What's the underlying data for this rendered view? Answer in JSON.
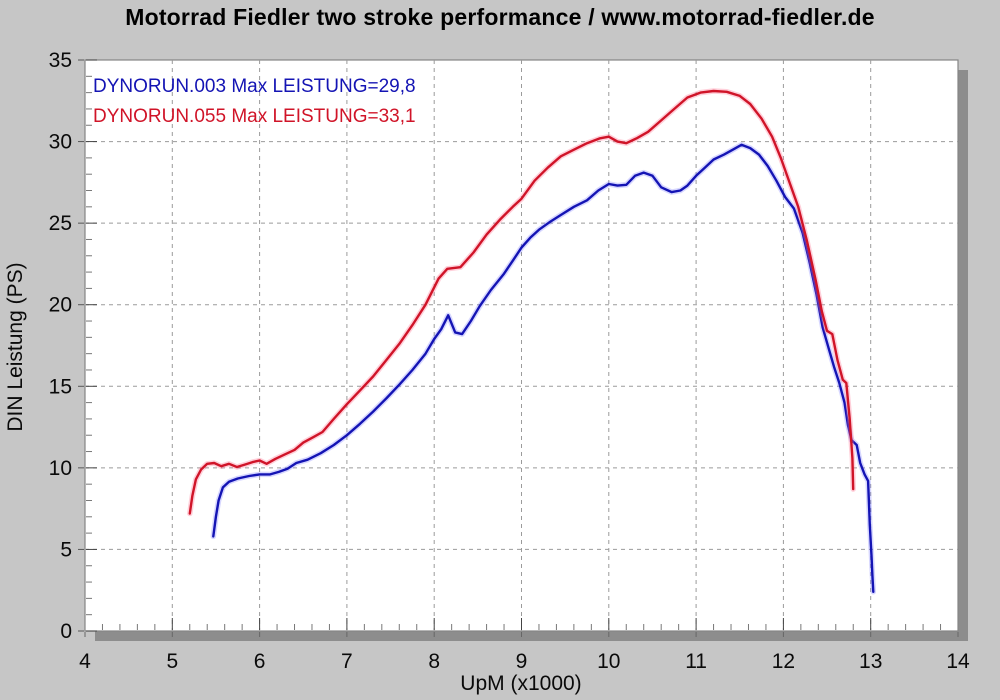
{
  "header": {
    "title": "Motorrad Fiedler two stroke performance / www.motorrad-fiedler.de"
  },
  "chart_data": {
    "type": "line",
    "title": "Motorrad Fiedler two stroke performance / www.motorrad-fiedler.de",
    "xlabel": "UpM (x1000)",
    "ylabel": "DIN Leistung (PS)",
    "xlim": [
      4,
      14
    ],
    "ylim": [
      0,
      35
    ],
    "x_ticks": [
      4,
      5,
      6,
      7,
      8,
      9,
      10,
      11,
      12,
      13,
      14
    ],
    "y_ticks": [
      0,
      5,
      10,
      15,
      20,
      25,
      30,
      35
    ],
    "x_minor_step": 0.2,
    "y_minor_step": 1,
    "grid": "dashed-major",
    "legend_position": "top-left",
    "background": "#c6c6c6",
    "plot_background": "#ffffff",
    "grid_color": "#9b9b9b",
    "shadow_color": "#8d8d8d",
    "series": [
      {
        "name": "DYNORUN.003",
        "legend": "DYNORUN.003  Max LEISTUNG=29,8",
        "max_label": "Max LEISTUNG=29,8",
        "max_value_ps": 29.8,
        "color": "#1414b4",
        "halo": "rgba(110,110,255,0.28)",
        "points": [
          [
            5.47,
            5.8
          ],
          [
            5.5,
            7.0
          ],
          [
            5.53,
            8.0
          ],
          [
            5.58,
            8.8
          ],
          [
            5.65,
            9.15
          ],
          [
            5.75,
            9.35
          ],
          [
            5.88,
            9.5
          ],
          [
            6.0,
            9.6
          ],
          [
            6.12,
            9.6
          ],
          [
            6.22,
            9.75
          ],
          [
            6.32,
            9.95
          ],
          [
            6.42,
            10.3
          ],
          [
            6.55,
            10.5
          ],
          [
            6.7,
            10.9
          ],
          [
            6.85,
            11.4
          ],
          [
            7.0,
            12.0
          ],
          [
            7.15,
            12.7
          ],
          [
            7.3,
            13.45
          ],
          [
            7.45,
            14.25
          ],
          [
            7.6,
            15.1
          ],
          [
            7.75,
            16.0
          ],
          [
            7.9,
            17.0
          ],
          [
            8.0,
            17.9
          ],
          [
            8.08,
            18.5
          ],
          [
            8.16,
            19.35
          ],
          [
            8.24,
            18.3
          ],
          [
            8.32,
            18.2
          ],
          [
            8.42,
            19.0
          ],
          [
            8.52,
            19.9
          ],
          [
            8.65,
            20.9
          ],
          [
            8.8,
            21.9
          ],
          [
            8.9,
            22.7
          ],
          [
            9.0,
            23.5
          ],
          [
            9.1,
            24.1
          ],
          [
            9.2,
            24.6
          ],
          [
            9.32,
            25.05
          ],
          [
            9.45,
            25.5
          ],
          [
            9.6,
            26.0
          ],
          [
            9.75,
            26.4
          ],
          [
            9.88,
            27.0
          ],
          [
            10.0,
            27.4
          ],
          [
            10.1,
            27.3
          ],
          [
            10.2,
            27.35
          ],
          [
            10.3,
            27.9
          ],
          [
            10.4,
            28.1
          ],
          [
            10.5,
            27.9
          ],
          [
            10.6,
            27.2
          ],
          [
            10.72,
            26.9
          ],
          [
            10.82,
            27.0
          ],
          [
            10.9,
            27.3
          ],
          [
            11.0,
            27.9
          ],
          [
            11.1,
            28.4
          ],
          [
            11.2,
            28.9
          ],
          [
            11.32,
            29.2
          ],
          [
            11.42,
            29.5
          ],
          [
            11.52,
            29.8
          ],
          [
            11.62,
            29.6
          ],
          [
            11.72,
            29.2
          ],
          [
            11.82,
            28.5
          ],
          [
            11.92,
            27.6
          ],
          [
            12.02,
            26.6
          ],
          [
            12.12,
            25.9
          ],
          [
            12.22,
            24.4
          ],
          [
            12.3,
            22.6
          ],
          [
            12.38,
            20.6
          ],
          [
            12.45,
            18.6
          ],
          [
            12.52,
            17.3
          ],
          [
            12.58,
            16.2
          ],
          [
            12.64,
            15.2
          ],
          [
            12.7,
            14.0
          ],
          [
            12.74,
            12.6
          ],
          [
            12.78,
            11.7
          ],
          [
            12.84,
            11.4
          ],
          [
            12.88,
            10.3
          ],
          [
            12.93,
            9.6
          ],
          [
            12.97,
            9.2
          ],
          [
            12.99,
            6.5
          ],
          [
            13.01,
            4.5
          ],
          [
            13.02,
            3.4
          ],
          [
            13.03,
            2.4
          ]
        ]
      },
      {
        "name": "DYNORUN.055",
        "legend": "DYNORUN.055  Max LEISTUNG=33,1",
        "max_label": "Max LEISTUNG=33,1",
        "max_value_ps": 33.1,
        "color": "#d01428",
        "halo": "rgba(255,110,140,0.32)",
        "points": [
          [
            5.2,
            7.2
          ],
          [
            5.23,
            8.3
          ],
          [
            5.27,
            9.3
          ],
          [
            5.33,
            9.9
          ],
          [
            5.4,
            10.25
          ],
          [
            5.48,
            10.3
          ],
          [
            5.56,
            10.1
          ],
          [
            5.65,
            10.25
          ],
          [
            5.74,
            10.05
          ],
          [
            5.83,
            10.2
          ],
          [
            5.92,
            10.35
          ],
          [
            6.0,
            10.45
          ],
          [
            6.08,
            10.25
          ],
          [
            6.18,
            10.55
          ],
          [
            6.28,
            10.8
          ],
          [
            6.4,
            11.1
          ],
          [
            6.5,
            11.55
          ],
          [
            6.62,
            11.9
          ],
          [
            6.72,
            12.2
          ],
          [
            6.85,
            13.0
          ],
          [
            7.0,
            13.9
          ],
          [
            7.15,
            14.75
          ],
          [
            7.3,
            15.6
          ],
          [
            7.45,
            16.6
          ],
          [
            7.6,
            17.6
          ],
          [
            7.75,
            18.75
          ],
          [
            7.9,
            20.0
          ],
          [
            8.05,
            21.6
          ],
          [
            8.15,
            22.2
          ],
          [
            8.3,
            22.3
          ],
          [
            8.45,
            23.2
          ],
          [
            8.6,
            24.3
          ],
          [
            8.75,
            25.2
          ],
          [
            8.9,
            26.0
          ],
          [
            9.0,
            26.5
          ],
          [
            9.15,
            27.6
          ],
          [
            9.3,
            28.4
          ],
          [
            9.45,
            29.1
          ],
          [
            9.6,
            29.5
          ],
          [
            9.75,
            29.9
          ],
          [
            9.9,
            30.2
          ],
          [
            10.0,
            30.3
          ],
          [
            10.1,
            30.0
          ],
          [
            10.2,
            29.9
          ],
          [
            10.32,
            30.2
          ],
          [
            10.45,
            30.6
          ],
          [
            10.6,
            31.3
          ],
          [
            10.75,
            32.0
          ],
          [
            10.9,
            32.7
          ],
          [
            11.05,
            33.0
          ],
          [
            11.2,
            33.1
          ],
          [
            11.35,
            33.05
          ],
          [
            11.5,
            32.8
          ],
          [
            11.62,
            32.3
          ],
          [
            11.75,
            31.4
          ],
          [
            11.87,
            30.3
          ],
          [
            11.97,
            29.0
          ],
          [
            12.07,
            27.5
          ],
          [
            12.17,
            26.0
          ],
          [
            12.27,
            23.9
          ],
          [
            12.37,
            21.5
          ],
          [
            12.44,
            19.6
          ],
          [
            12.5,
            18.4
          ],
          [
            12.56,
            18.2
          ],
          [
            12.62,
            16.6
          ],
          [
            12.68,
            15.4
          ],
          [
            12.72,
            15.2
          ],
          [
            12.76,
            13.0
          ],
          [
            12.79,
            10.6
          ],
          [
            12.8,
            8.7
          ]
        ]
      }
    ]
  }
}
